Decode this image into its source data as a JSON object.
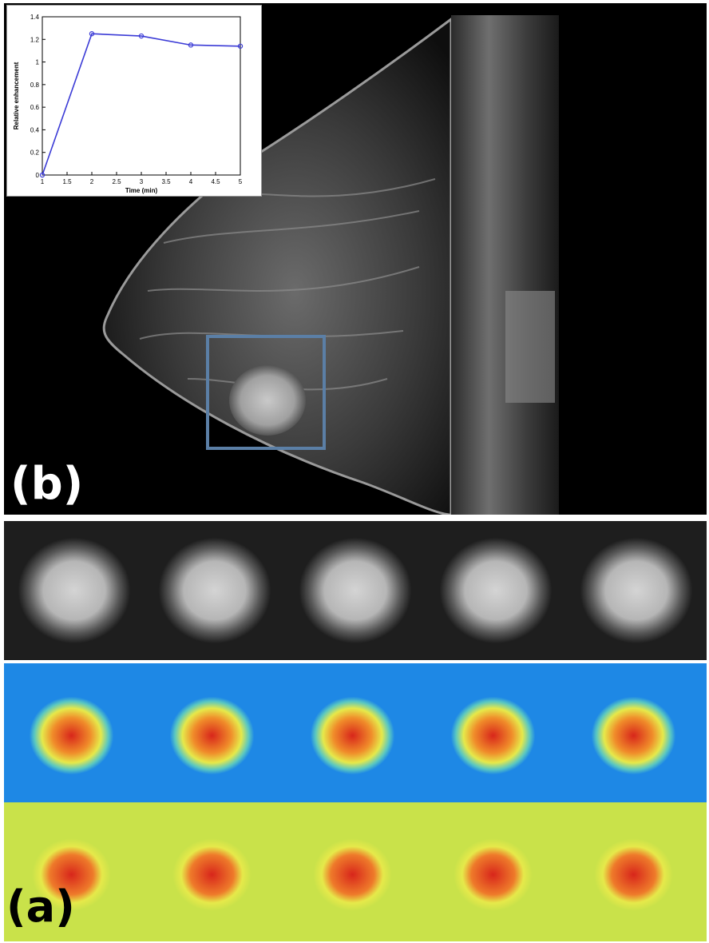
{
  "figure": {
    "panel_b_label": "(b)",
    "panel_a_label": "(a)",
    "roi_box_color": "#5b7fa6",
    "colors": {
      "series_line": "#3b3bd6",
      "map_low": "#1e88e5",
      "map_mid": "#e6e94a",
      "map_high": "#d8261b"
    }
  },
  "chart_data": {
    "type": "line",
    "title": "",
    "xlabel": "Time (min)",
    "ylabel": "Relative enhancement",
    "xlim": [
      1,
      5
    ],
    "ylim": [
      0,
      1.4
    ],
    "xticks": [
      "1",
      "1.5",
      "2",
      "2.5",
      "3",
      "3.5",
      "4",
      "4.5",
      "5"
    ],
    "yticks": [
      "0",
      "0.2",
      "0.4",
      "0.6",
      "0.8",
      "1",
      "1.2",
      "1.4"
    ],
    "grid": false,
    "series": [
      {
        "x": [
          1,
          2,
          3,
          4,
          5
        ],
        "y": [
          0.0,
          1.25,
          1.23,
          1.15,
          1.14
        ]
      }
    ]
  },
  "time_series": {
    "frames": 5,
    "rows": [
      "grayscale",
      "colormap-1",
      "colormap-2"
    ]
  }
}
